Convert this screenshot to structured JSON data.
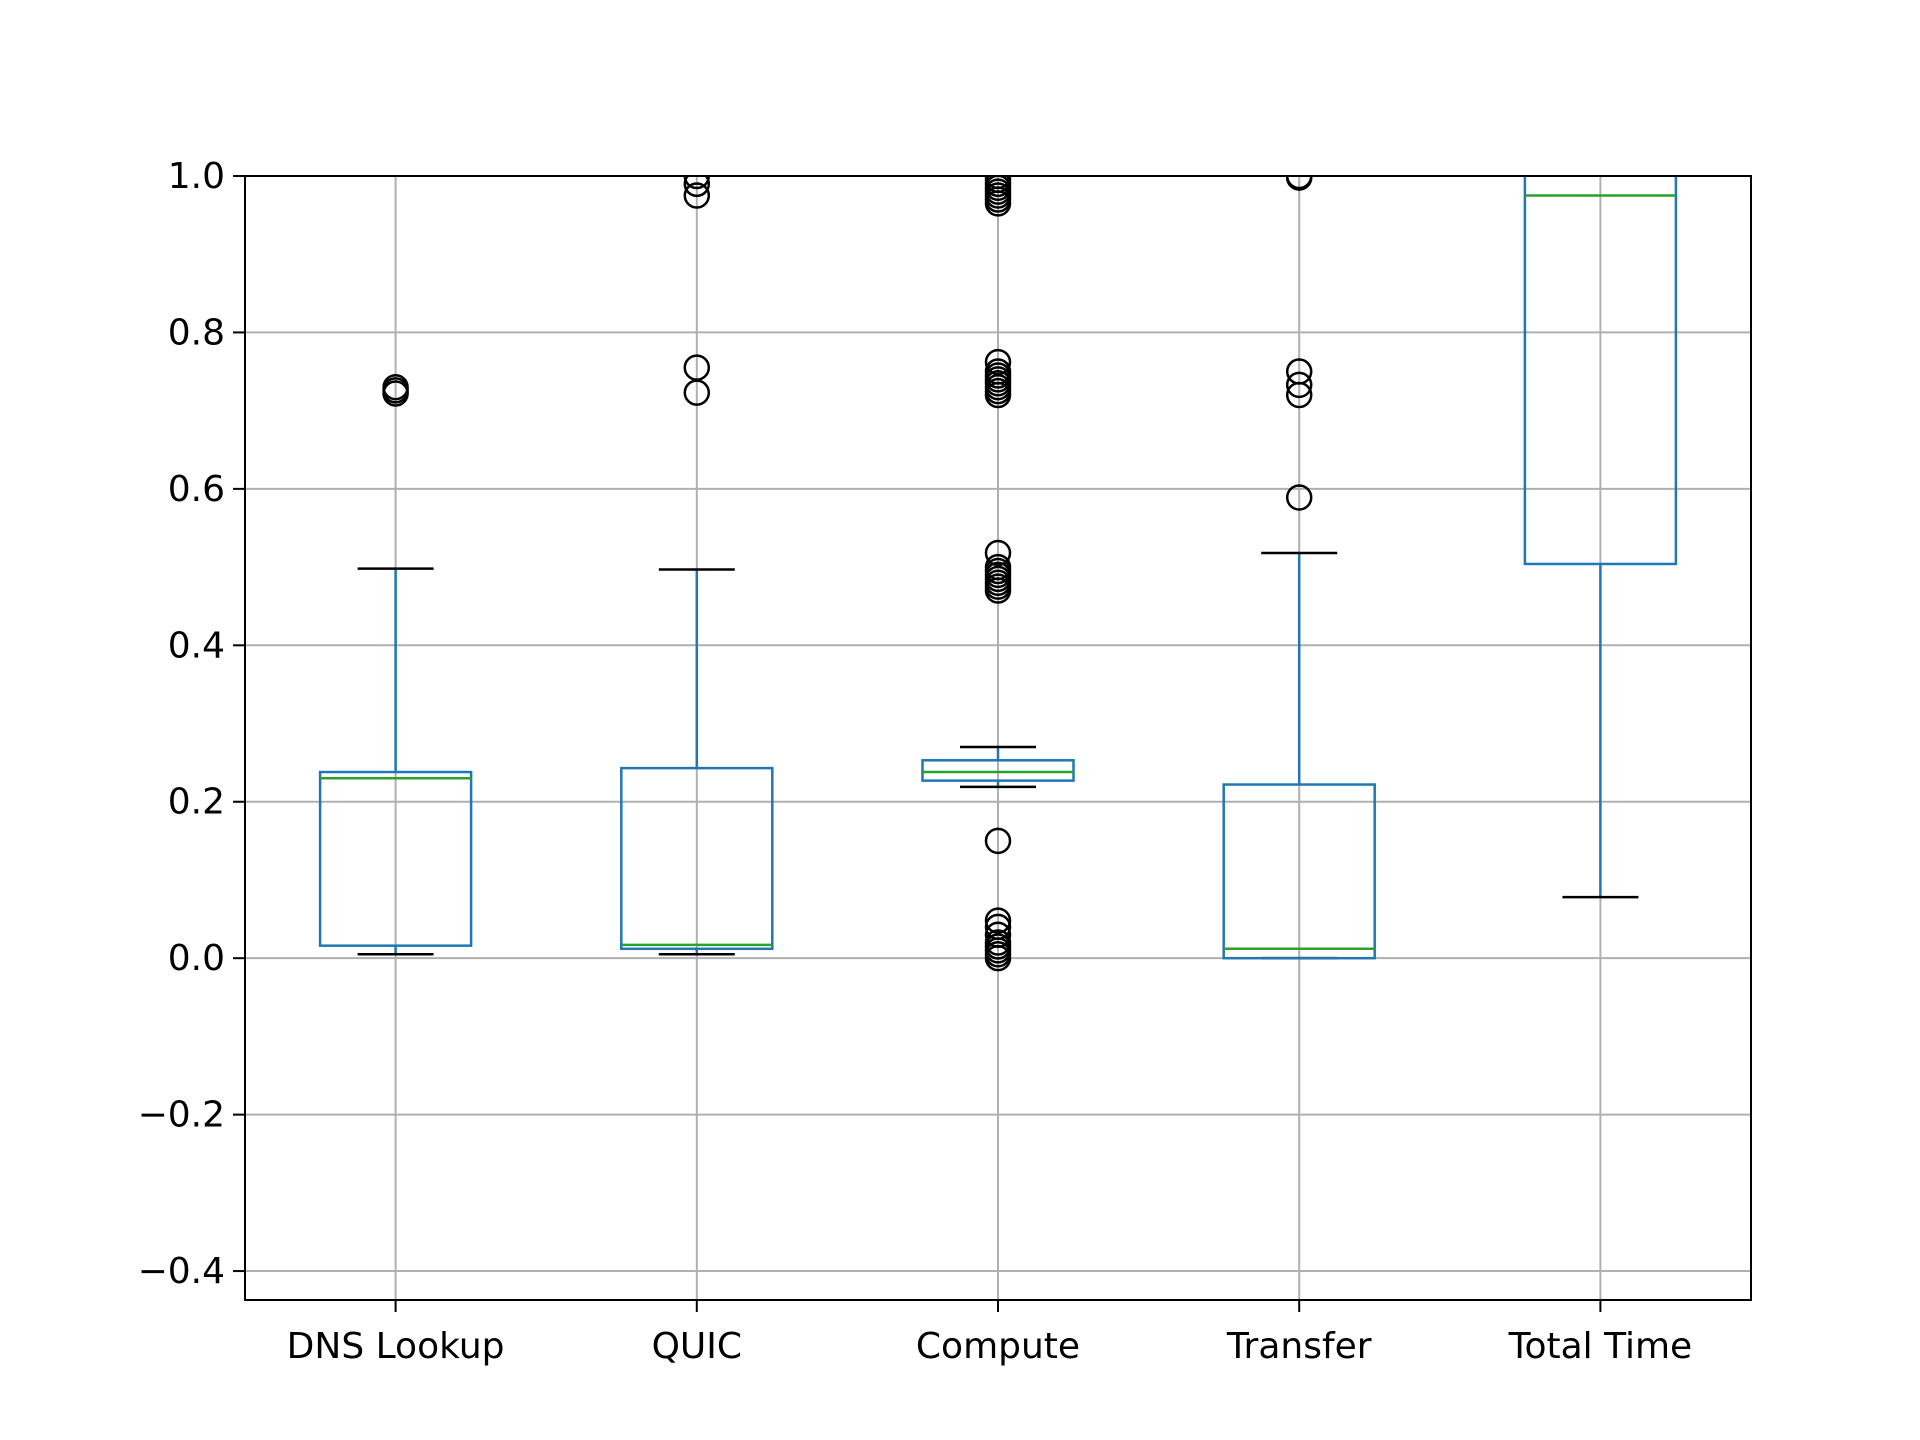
{
  "chart_data": {
    "type": "box",
    "title": "",
    "xlabel": "",
    "ylabel": "",
    "ylim": [
      -0.437,
      1.0
    ],
    "yticks": [
      -0.4,
      -0.2,
      0.0,
      0.2,
      0.4,
      0.6,
      0.8,
      1.0
    ],
    "ytick_labels": [
      "−0.4",
      "−0.2",
      "0.0",
      "0.2",
      "0.4",
      "0.6",
      "0.8",
      "1.0"
    ],
    "grid": true,
    "legend": "none",
    "colors": {
      "box": "#1f77b4",
      "median": "#2ca02c",
      "whisker_cap": "#000000",
      "flier": "#000000",
      "grid": "#b0b0b0"
    },
    "categories": [
      "DNS Lookup",
      "QUIC",
      "Compute",
      "Transfer",
      "Total Time"
    ],
    "boxes": [
      {
        "name": "DNS Lookup",
        "whislo": 0.005,
        "q1": 0.016,
        "med": 0.23,
        "q3": 0.238,
        "whishi": 0.498,
        "fliers": [
          0.722,
          0.726,
          0.73
        ]
      },
      {
        "name": "QUIC",
        "whislo": 0.005,
        "q1": 0.012,
        "med": 0.017,
        "q3": 0.243,
        "whishi": 0.497,
        "fliers": [
          0.723,
          0.755,
          0.975,
          0.99,
          1.0
        ]
      },
      {
        "name": "Compute",
        "whislo": 0.219,
        "q1": 0.227,
        "med": 0.238,
        "q3": 0.253,
        "whishi": 0.27,
        "fliers": [
          0.0,
          0.005,
          0.01,
          0.015,
          0.02,
          0.03,
          0.04,
          0.048,
          0.15,
          0.47,
          0.475,
          0.48,
          0.485,
          0.49,
          0.495,
          0.5,
          0.518,
          0.72,
          0.725,
          0.73,
          0.735,
          0.74,
          0.745,
          0.75,
          0.762,
          0.965,
          0.97,
          0.975,
          0.98,
          0.985,
          0.99,
          0.995,
          1.0
        ]
      },
      {
        "name": "Transfer",
        "whislo": 0.0,
        "q1": 0.0,
        "med": 0.012,
        "q3": 0.222,
        "whishi": 0.518,
        "fliers": [
          0.589,
          0.72,
          0.733,
          0.75,
          0.998,
          1.0
        ]
      },
      {
        "name": "Total Time",
        "whislo": 0.078,
        "q1": 0.504,
        "med": 0.975,
        "q3": 1.05,
        "whishi": 1.1,
        "fliers": []
      }
    ]
  }
}
